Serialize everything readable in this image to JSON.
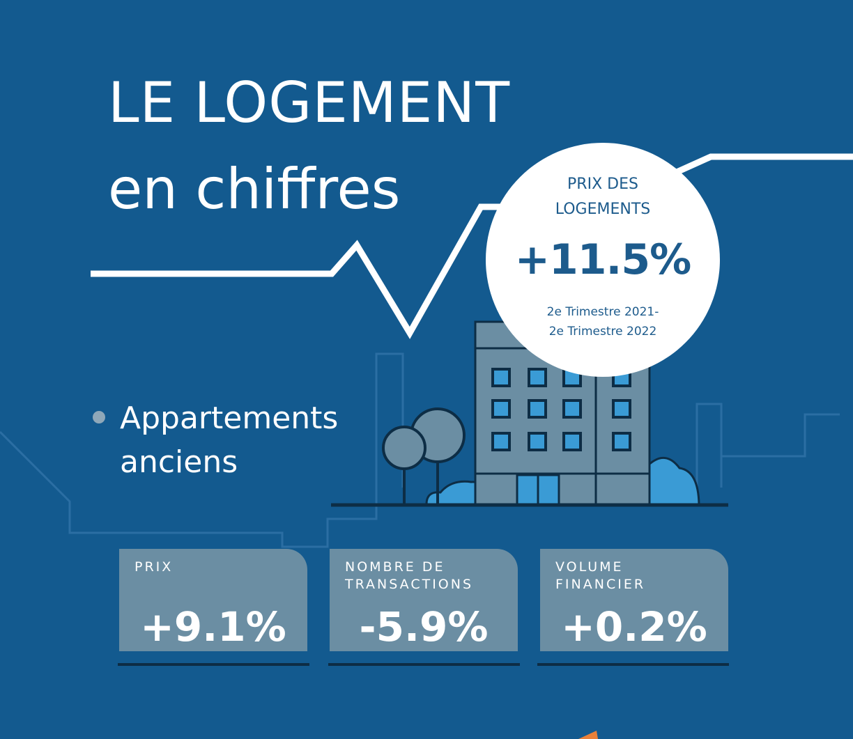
{
  "title": {
    "line1": "LE LOGEMENT",
    "line2": "en chiffres"
  },
  "highlight": {
    "label_line1": "PRIX DES",
    "label_line2": "LOGEMENTS",
    "value": "+11.5%",
    "period_line1": "2e Trimestre 2021-",
    "period_line2": "2e Trimestre 2022"
  },
  "section": {
    "line1": "Appartements",
    "line2": "anciens"
  },
  "stats": [
    {
      "label": "PRIX",
      "value": "+9.1%"
    },
    {
      "label": "NOMBRE DE\nTRANSACTIONS",
      "value": "-5.9%"
    },
    {
      "label": "VOLUME\nFINANCIER",
      "value": "+0.2%"
    }
  ],
  "colors": {
    "background": "#135a8f",
    "accent_dark": "#1d5b8c",
    "card": "#6b8ea3",
    "building": "#6b8ea3",
    "window": "#3a9bd5",
    "outline": "#0d2d45"
  }
}
